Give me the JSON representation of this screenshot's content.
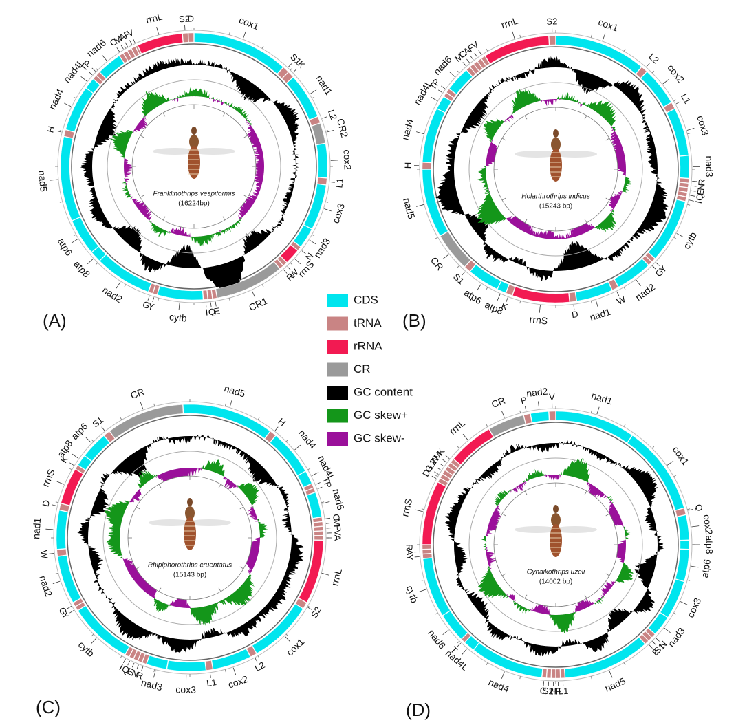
{
  "legend": [
    {
      "label": "CDS",
      "color": "#00e5ee"
    },
    {
      "label": "tRNA",
      "color": "#c98484"
    },
    {
      "label": "rRNA",
      "color": "#f21a52"
    },
    {
      "label": "CR",
      "color": "#9a9a9a"
    },
    {
      "label": "GC content",
      "color": "#000000"
    },
    {
      "label": "GC skew+",
      "color": "#14961a"
    },
    {
      "label": "GC skew-",
      "color": "#9a109a"
    }
  ],
  "panels": [
    {
      "label": "(A)",
      "species": "Franklinothrips vespiformis",
      "length": "(16224bp)",
      "genes": [
        {
          "name": "rrnL",
          "type": "rRNA"
        },
        {
          "name": "S2",
          "type": "tRNA"
        },
        {
          "name": "D",
          "type": "tRNA"
        },
        {
          "name": "cox1",
          "type": "CDS"
        },
        {
          "name": "S1",
          "type": "tRNA"
        },
        {
          "name": "K",
          "type": "tRNA"
        },
        {
          "name": "nad1",
          "type": "CDS"
        },
        {
          "name": "L2",
          "type": "tRNA"
        },
        {
          "name": "CR2",
          "type": "CR"
        },
        {
          "name": "cox2",
          "type": "CDS"
        },
        {
          "name": "L1",
          "type": "tRNA"
        },
        {
          "name": "cox3",
          "type": "CDS"
        },
        {
          "name": "nad3",
          "type": "CDS"
        },
        {
          "name": "N",
          "type": "tRNA"
        },
        {
          "name": "rrnS",
          "type": "rRNA"
        },
        {
          "name": "W",
          "type": "tRNA"
        },
        {
          "name": "R",
          "type": "tRNA"
        },
        {
          "name": "CR1",
          "type": "CR"
        },
        {
          "name": "E",
          "type": "tRNA"
        },
        {
          "name": "Q",
          "type": "tRNA"
        },
        {
          "name": "I",
          "type": "tRNA"
        },
        {
          "name": "cytb",
          "type": "CDS"
        },
        {
          "name": "Y",
          "type": "tRNA"
        },
        {
          "name": "G",
          "type": "tRNA"
        },
        {
          "name": "nad2",
          "type": "CDS"
        },
        {
          "name": "atp8",
          "type": "CDS"
        },
        {
          "name": "atp6",
          "type": "CDS"
        },
        {
          "name": "nad5",
          "type": "CDS"
        },
        {
          "name": "H",
          "type": "tRNA"
        },
        {
          "name": "nad4",
          "type": "CDS"
        },
        {
          "name": "nad4L",
          "type": "CDS"
        },
        {
          "name": "T",
          "type": "tRNA"
        },
        {
          "name": "P",
          "type": "tRNA"
        },
        {
          "name": "nad6",
          "type": "CDS"
        },
        {
          "name": "C",
          "type": "tRNA"
        },
        {
          "name": "M",
          "type": "tRNA"
        },
        {
          "name": "A",
          "type": "tRNA"
        },
        {
          "name": "F",
          "type": "tRNA"
        },
        {
          "name": "V",
          "type": "tRNA"
        }
      ]
    },
    {
      "label": "(B)",
      "species": "Holarthrothrips indicus",
      "length": "(15243 bp)",
      "genes": [
        {
          "name": "S2",
          "type": "tRNA"
        },
        {
          "name": "cox1",
          "type": "CDS"
        },
        {
          "name": "L2",
          "type": "tRNA"
        },
        {
          "name": "cox2",
          "type": "CDS"
        },
        {
          "name": "L1",
          "type": "tRNA"
        },
        {
          "name": "cox3",
          "type": "CDS"
        },
        {
          "name": "nad3",
          "type": "CDS"
        },
        {
          "name": "R",
          "type": "tRNA"
        },
        {
          "name": "N",
          "type": "tRNA"
        },
        {
          "name": "E",
          "type": "tRNA"
        },
        {
          "name": "Q",
          "type": "tRNA"
        },
        {
          "name": "I",
          "type": "tRNA"
        },
        {
          "name": "cytb",
          "type": "CDS"
        },
        {
          "name": "Y",
          "type": "tRNA"
        },
        {
          "name": "G",
          "type": "tRNA"
        },
        {
          "name": "nad2",
          "type": "CDS"
        },
        {
          "name": "W",
          "type": "tRNA"
        },
        {
          "name": "nad1",
          "type": "CDS"
        },
        {
          "name": "D",
          "type": "tRNA"
        },
        {
          "name": "rrnS",
          "type": "rRNA"
        },
        {
          "name": "K",
          "type": "tRNA"
        },
        {
          "name": "atp8",
          "type": "CDS"
        },
        {
          "name": "atp6",
          "type": "CDS"
        },
        {
          "name": "S1",
          "type": "tRNA"
        },
        {
          "name": "CR",
          "type": "CR"
        },
        {
          "name": "nad5",
          "type": "CDS"
        },
        {
          "name": "H",
          "type": "tRNA"
        },
        {
          "name": "nad4",
          "type": "CDS"
        },
        {
          "name": "nad4L",
          "type": "CDS"
        },
        {
          "name": "T",
          "type": "tRNA"
        },
        {
          "name": "P",
          "type": "tRNA"
        },
        {
          "name": "nad6",
          "type": "CDS"
        },
        {
          "name": "M",
          "type": "tRNA"
        },
        {
          "name": "C",
          "type": "tRNA"
        },
        {
          "name": "A",
          "type": "tRNA"
        },
        {
          "name": "F",
          "type": "tRNA"
        },
        {
          "name": "V",
          "type": "tRNA"
        },
        {
          "name": "rrnL",
          "type": "rRNA"
        }
      ]
    },
    {
      "label": "(C)",
      "species": "Rhipiphorothrips cruentatus",
      "length": "(15143 bp)",
      "genes": [
        {
          "name": "nad5",
          "type": "CDS"
        },
        {
          "name": "H",
          "type": "tRNA"
        },
        {
          "name": "nad4",
          "type": "CDS"
        },
        {
          "name": "nad4L",
          "type": "CDS"
        },
        {
          "name": "T",
          "type": "tRNA"
        },
        {
          "name": "P",
          "type": "tRNA"
        },
        {
          "name": "nad6",
          "type": "CDS"
        },
        {
          "name": "C",
          "type": "tRNA"
        },
        {
          "name": "M",
          "type": "tRNA"
        },
        {
          "name": "F",
          "type": "tRNA"
        },
        {
          "name": "V",
          "type": "tRNA"
        },
        {
          "name": "A",
          "type": "tRNA"
        },
        {
          "name": "rrnL",
          "type": "rRNA"
        },
        {
          "name": "S2",
          "type": "tRNA"
        },
        {
          "name": "cox1",
          "type": "CDS"
        },
        {
          "name": "L2",
          "type": "tRNA"
        },
        {
          "name": "cox2",
          "type": "CDS"
        },
        {
          "name": "L1",
          "type": "tRNA"
        },
        {
          "name": "cox3",
          "type": "CDS"
        },
        {
          "name": "nad3",
          "type": "CDS"
        },
        {
          "name": "R",
          "type": "tRNA"
        },
        {
          "name": "N",
          "type": "tRNA"
        },
        {
          "name": "E",
          "type": "tRNA"
        },
        {
          "name": "Q",
          "type": "tRNA"
        },
        {
          "name": "I",
          "type": "tRNA"
        },
        {
          "name": "cytb",
          "type": "CDS"
        },
        {
          "name": "Y",
          "type": "tRNA"
        },
        {
          "name": "G",
          "type": "tRNA"
        },
        {
          "name": "nad2",
          "type": "CDS"
        },
        {
          "name": "W",
          "type": "tRNA"
        },
        {
          "name": "nad1",
          "type": "CDS"
        },
        {
          "name": "D",
          "type": "tRNA"
        },
        {
          "name": "rrnS",
          "type": "rRNA"
        },
        {
          "name": "K",
          "type": "tRNA"
        },
        {
          "name": "atp8",
          "type": "CDS"
        },
        {
          "name": "atp6",
          "type": "CDS"
        },
        {
          "name": "S1",
          "type": "tRNA"
        },
        {
          "name": "CR",
          "type": "CR"
        }
      ]
    },
    {
      "label": "(D)",
      "species": "Gynaikothrips uzeli",
      "length": "(14002 bp)",
      "genes": [
        {
          "name": "nad1",
          "type": "CDS"
        },
        {
          "name": "cox1",
          "type": "CDS"
        },
        {
          "name": "Q",
          "type": "tRNA"
        },
        {
          "name": "cox2",
          "type": "CDS"
        },
        {
          "name": "atp8",
          "type": "CDS"
        },
        {
          "name": "atp6",
          "type": "CDS"
        },
        {
          "name": "cox3",
          "type": "CDS"
        },
        {
          "name": "nad3",
          "type": "CDS"
        },
        {
          "name": "N",
          "type": "tRNA"
        },
        {
          "name": "S1",
          "type": "tRNA"
        },
        {
          "name": "E",
          "type": "tRNA"
        },
        {
          "name": "nad5",
          "type": "CDS"
        },
        {
          "name": "L1",
          "type": "tRNA"
        },
        {
          "name": "F",
          "type": "tRNA"
        },
        {
          "name": "H",
          "type": "tRNA"
        },
        {
          "name": "S2",
          "type": "tRNA"
        },
        {
          "name": "C",
          "type": "tRNA"
        },
        {
          "name": "nad4",
          "type": "CDS"
        },
        {
          "name": "nad4L",
          "type": "CDS"
        },
        {
          "name": "T",
          "type": "tRNA"
        },
        {
          "name": "nad6",
          "type": "CDS"
        },
        {
          "name": "cytb",
          "type": "CDS"
        },
        {
          "name": "Y",
          "type": "tRNA"
        },
        {
          "name": "A",
          "type": "tRNA"
        },
        {
          "name": "R",
          "type": "tRNA"
        },
        {
          "name": "rrnS",
          "type": "rRNA"
        },
        {
          "name": "D",
          "type": "tRNA"
        },
        {
          "name": "G",
          "type": "tRNA"
        },
        {
          "name": "L2",
          "type": "tRNA"
        },
        {
          "name": "W",
          "type": "tRNA"
        },
        {
          "name": "M",
          "type": "tRNA"
        },
        {
          "name": "K",
          "type": "tRNA"
        },
        {
          "name": "rrnL",
          "type": "rRNA"
        },
        {
          "name": "CR",
          "type": "CR"
        },
        {
          "name": "P",
          "type": "tRNA"
        },
        {
          "name": "nad2",
          "type": "CDS"
        },
        {
          "name": "V",
          "type": "tRNA"
        }
      ]
    }
  ]
}
